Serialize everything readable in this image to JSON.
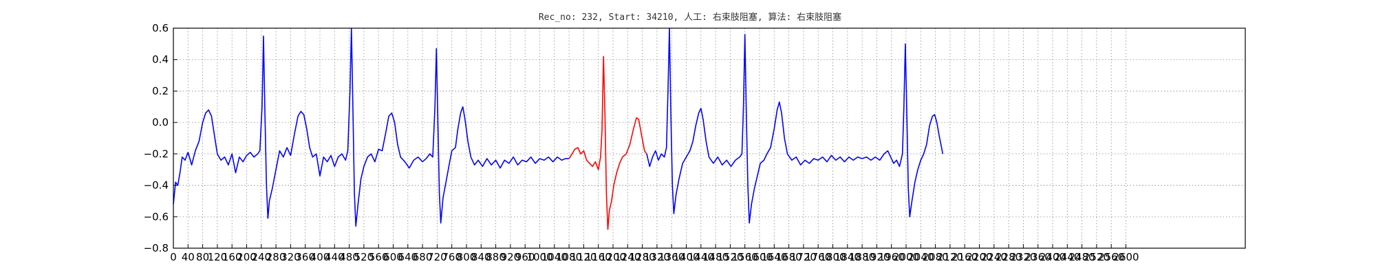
{
  "chart_data": {
    "type": "line",
    "title": "Rec_no: 232, Start: 34210, 人工: 右束肢阻塞, 算法: 右束肢阻塞",
    "xlabel": "",
    "ylabel": "",
    "xlim": [
      0,
      2600
    ],
    "ylim": [
      -0.8,
      0.6
    ],
    "grid": true,
    "yticks": [
      -0.8,
      -0.6,
      -0.4,
      -0.2,
      0.0,
      0.2,
      0.4,
      0.6
    ],
    "ytick_labels": [
      "−0.8",
      "−0.6",
      "−0.4",
      "−0.2",
      "0.0",
      "0.2",
      "0.4",
      "0.6"
    ],
    "xtick_labels": [
      "0",
      "40",
      "80",
      "120",
      "160",
      "200",
      "240",
      "280",
      "320",
      "360",
      "400",
      "440",
      "480",
      "520",
      "560",
      "600",
      "640",
      "680",
      "720",
      "760",
      "800",
      "840",
      "880",
      "920",
      "960",
      "1000",
      "1040",
      "1080",
      "1120",
      "1160",
      "1200",
      "1240",
      "1280",
      "1320",
      "1360",
      "1400",
      "1440",
      "1480",
      "1520",
      "1560",
      "1600",
      "1640",
      "1680",
      "1720",
      "1760",
      "1800",
      "1840",
      "1880",
      "1920",
      "1960",
      "2000",
      "2040",
      "2080",
      "2120",
      "2160",
      "2200",
      "2240",
      "2280",
      "2320",
      "2360",
      "2400",
      "2440",
      "2480",
      "2520",
      "2560",
      "2600"
    ],
    "series": [
      {
        "color": "#0000ff",
        "points": [
          [
            0,
            -0.52
          ],
          [
            6,
            -0.38
          ],
          [
            12,
            -0.4
          ],
          [
            18,
            -0.32
          ],
          [
            24,
            -0.22
          ],
          [
            32,
            -0.24
          ],
          [
            40,
            -0.19
          ],
          [
            50,
            -0.27
          ],
          [
            60,
            -0.18
          ],
          [
            70,
            -0.12
          ],
          [
            80,
            0.0
          ],
          [
            88,
            0.06
          ],
          [
            96,
            0.08
          ],
          [
            104,
            0.04
          ],
          [
            112,
            -0.08
          ],
          [
            120,
            -0.2
          ],
          [
            130,
            -0.24
          ],
          [
            140,
            -0.22
          ],
          [
            150,
            -0.27
          ],
          [
            160,
            -0.2
          ],
          [
            170,
            -0.32
          ],
          [
            180,
            -0.22
          ],
          [
            190,
            -0.25
          ],
          [
            200,
            -0.21
          ],
          [
            210,
            -0.19
          ],
          [
            220,
            -0.22
          ],
          [
            230,
            -0.2
          ],
          [
            236,
            -0.18
          ],
          [
            242,
            0.1
          ],
          [
            246,
            0.55
          ],
          [
            250,
            0.05
          ],
          [
            254,
            -0.4
          ],
          [
            258,
            -0.61
          ],
          [
            262,
            -0.5
          ],
          [
            270,
            -0.42
          ],
          [
            280,
            -0.3
          ],
          [
            290,
            -0.18
          ],
          [
            300,
            -0.22
          ],
          [
            310,
            -0.16
          ],
          [
            320,
            -0.21
          ],
          [
            330,
            -0.08
          ],
          [
            340,
            0.04
          ],
          [
            348,
            0.07
          ],
          [
            356,
            0.05
          ],
          [
            364,
            -0.04
          ],
          [
            372,
            -0.16
          ],
          [
            380,
            -0.22
          ],
          [
            390,
            -0.2
          ],
          [
            400,
            -0.34
          ],
          [
            410,
            -0.22
          ],
          [
            420,
            -0.25
          ],
          [
            430,
            -0.21
          ],
          [
            440,
            -0.28
          ],
          [
            450,
            -0.22
          ],
          [
            460,
            -0.2
          ],
          [
            470,
            -0.24
          ],
          [
            476,
            -0.18
          ],
          [
            482,
            0.2
          ],
          [
            486,
            0.6
          ],
          [
            490,
            0.1
          ],
          [
            494,
            -0.45
          ],
          [
            498,
            -0.66
          ],
          [
            504,
            -0.52
          ],
          [
            512,
            -0.36
          ],
          [
            520,
            -0.28
          ],
          [
            530,
            -0.22
          ],
          [
            540,
            -0.2
          ],
          [
            550,
            -0.25
          ],
          [
            560,
            -0.17
          ],
          [
            570,
            -0.18
          ],
          [
            580,
            -0.06
          ],
          [
            588,
            0.04
          ],
          [
            596,
            0.06
          ],
          [
            604,
            0.0
          ],
          [
            612,
            -0.14
          ],
          [
            620,
            -0.22
          ],
          [
            632,
            -0.25
          ],
          [
            644,
            -0.29
          ],
          [
            656,
            -0.24
          ],
          [
            668,
            -0.22
          ],
          [
            680,
            -0.25
          ],
          [
            690,
            -0.23
          ],
          [
            700,
            -0.2
          ],
          [
            708,
            -0.22
          ],
          [
            714,
            0.1
          ],
          [
            718,
            0.47
          ],
          [
            722,
            0.0
          ],
          [
            726,
            -0.45
          ],
          [
            730,
            -0.64
          ],
          [
            736,
            -0.48
          ],
          [
            744,
            -0.38
          ],
          [
            752,
            -0.28
          ],
          [
            760,
            -0.18
          ],
          [
            770,
            -0.16
          ],
          [
            776,
            -0.05
          ],
          [
            784,
            0.06
          ],
          [
            790,
            0.1
          ],
          [
            796,
            0.02
          ],
          [
            804,
            -0.12
          ],
          [
            812,
            -0.22
          ],
          [
            822,
            -0.27
          ],
          [
            832,
            -0.24
          ],
          [
            844,
            -0.28
          ],
          [
            856,
            -0.23
          ],
          [
            868,
            -0.27
          ],
          [
            880,
            -0.24
          ],
          [
            892,
            -0.29
          ],
          [
            904,
            -0.24
          ],
          [
            916,
            -0.26
          ],
          [
            928,
            -0.22
          ],
          [
            940,
            -0.27
          ],
          [
            952,
            -0.24
          ],
          [
            964,
            -0.25
          ],
          [
            976,
            -0.22
          ],
          [
            988,
            -0.26
          ],
          [
            1000,
            -0.23
          ],
          [
            1012,
            -0.24
          ],
          [
            1024,
            -0.22
          ],
          [
            1036,
            -0.25
          ],
          [
            1048,
            -0.22
          ],
          [
            1060,
            -0.24
          ],
          [
            1070,
            -0.23
          ],
          [
            1080,
            -0.23
          ]
        ]
      },
      {
        "color": "#ff0000",
        "points": [
          [
            1080,
            -0.23
          ],
          [
            1088,
            -0.2
          ],
          [
            1096,
            -0.17
          ],
          [
            1104,
            -0.16
          ],
          [
            1112,
            -0.2
          ],
          [
            1120,
            -0.18
          ],
          [
            1128,
            -0.24
          ],
          [
            1136,
            -0.26
          ],
          [
            1144,
            -0.28
          ],
          [
            1152,
            -0.25
          ],
          [
            1160,
            -0.3
          ],
          [
            1166,
            -0.22
          ],
          [
            1170,
            -0.05
          ],
          [
            1174,
            0.42
          ],
          [
            1178,
            0.05
          ],
          [
            1182,
            -0.45
          ],
          [
            1186,
            -0.68
          ],
          [
            1190,
            -0.56
          ],
          [
            1196,
            -0.5
          ],
          [
            1202,
            -0.4
          ],
          [
            1210,
            -0.32
          ],
          [
            1218,
            -0.26
          ],
          [
            1226,
            -0.22
          ],
          [
            1236,
            -0.2
          ],
          [
            1246,
            -0.14
          ],
          [
            1256,
            -0.04
          ],
          [
            1264,
            0.03
          ],
          [
            1270,
            0.02
          ],
          [
            1278,
            -0.08
          ],
          [
            1286,
            -0.18
          ],
          [
            1292,
            -0.2
          ]
        ]
      },
      {
        "color": "#0000ff",
        "points": [
          [
            1292,
            -0.2
          ],
          [
            1300,
            -0.28
          ],
          [
            1308,
            -0.22
          ],
          [
            1316,
            -0.18
          ],
          [
            1324,
            -0.24
          ],
          [
            1332,
            -0.2
          ],
          [
            1340,
            -0.22
          ],
          [
            1346,
            -0.16
          ],
          [
            1350,
            0.2
          ],
          [
            1354,
            0.6
          ],
          [
            1358,
            0.05
          ],
          [
            1362,
            -0.4
          ],
          [
            1366,
            -0.58
          ],
          [
            1372,
            -0.46
          ],
          [
            1380,
            -0.36
          ],
          [
            1390,
            -0.26
          ],
          [
            1400,
            -0.22
          ],
          [
            1410,
            -0.18
          ],
          [
            1418,
            -0.12
          ],
          [
            1426,
            -0.02
          ],
          [
            1434,
            0.06
          ],
          [
            1440,
            0.09
          ],
          [
            1446,
            0.02
          ],
          [
            1454,
            -0.12
          ],
          [
            1462,
            -0.22
          ],
          [
            1474,
            -0.26
          ],
          [
            1486,
            -0.22
          ],
          [
            1498,
            -0.27
          ],
          [
            1510,
            -0.24
          ],
          [
            1522,
            -0.28
          ],
          [
            1534,
            -0.24
          ],
          [
            1546,
            -0.22
          ],
          [
            1552,
            -0.2
          ],
          [
            1556,
            0.1
          ],
          [
            1560,
            0.56
          ],
          [
            1564,
            0.05
          ],
          [
            1568,
            -0.4
          ],
          [
            1572,
            -0.64
          ],
          [
            1578,
            -0.52
          ],
          [
            1586,
            -0.42
          ],
          [
            1594,
            -0.34
          ],
          [
            1602,
            -0.26
          ],
          [
            1612,
            -0.24
          ],
          [
            1620,
            -0.2
          ],
          [
            1630,
            -0.16
          ],
          [
            1640,
            -0.04
          ],
          [
            1648,
            0.08
          ],
          [
            1654,
            0.13
          ],
          [
            1660,
            0.06
          ],
          [
            1668,
            -0.1
          ],
          [
            1676,
            -0.2
          ],
          [
            1688,
            -0.24
          ],
          [
            1700,
            -0.22
          ],
          [
            1712,
            -0.27
          ],
          [
            1724,
            -0.24
          ],
          [
            1736,
            -0.26
          ],
          [
            1748,
            -0.23
          ],
          [
            1760,
            -0.24
          ],
          [
            1772,
            -0.22
          ],
          [
            1784,
            -0.25
          ],
          [
            1796,
            -0.21
          ],
          [
            1808,
            -0.24
          ],
          [
            1820,
            -0.22
          ],
          [
            1832,
            -0.25
          ],
          [
            1844,
            -0.22
          ],
          [
            1856,
            -0.24
          ],
          [
            1868,
            -0.22
          ],
          [
            1880,
            -0.23
          ],
          [
            1892,
            -0.22
          ],
          [
            1904,
            -0.24
          ],
          [
            1916,
            -0.22
          ],
          [
            1928,
            -0.24
          ],
          [
            1940,
            -0.2
          ],
          [
            1950,
            -0.18
          ],
          [
            1958,
            -0.22
          ],
          [
            1966,
            -0.26
          ],
          [
            1974,
            -0.24
          ],
          [
            1982,
            -0.28
          ],
          [
            1990,
            -0.2
          ],
          [
            1994,
            0.1
          ],
          [
            1998,
            0.5
          ],
          [
            2002,
            0.05
          ],
          [
            2006,
            -0.42
          ],
          [
            2010,
            -0.6
          ],
          [
            2016,
            -0.5
          ],
          [
            2024,
            -0.38
          ],
          [
            2032,
            -0.3
          ],
          [
            2040,
            -0.24
          ],
          [
            2048,
            -0.2
          ],
          [
            2056,
            -0.14
          ],
          [
            2064,
            -0.02
          ],
          [
            2072,
            0.04
          ],
          [
            2078,
            0.05
          ],
          [
            2084,
            0.0
          ],
          [
            2090,
            -0.08
          ],
          [
            2096,
            -0.15
          ],
          [
            2100,
            -0.2
          ]
        ]
      }
    ]
  }
}
